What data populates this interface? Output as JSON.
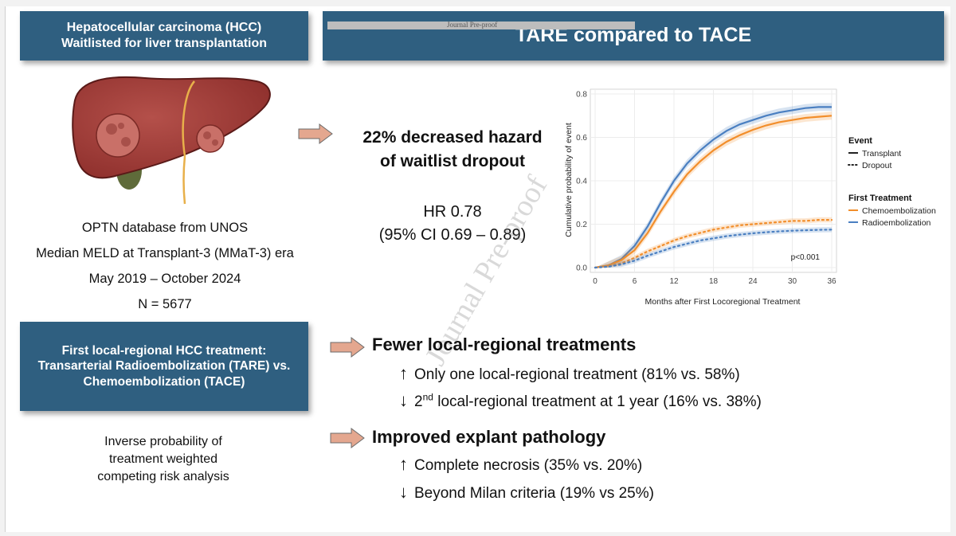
{
  "header_left": {
    "line1": "Hepatocellular carcinoma (HCC)",
    "line2": "Waitlisted for liver transplantation"
  },
  "header_right": {
    "title": "TARE compared to TACE",
    "overlay": "Journal Pre-proof"
  },
  "study": {
    "database": "OPTN database from UNOS",
    "era": "Median MELD at Transplant-3 (MMaT-3) era",
    "dates": "May 2019 – October 2024",
    "n": "N = 5677"
  },
  "result": {
    "hazard_line1": "22% decreased hazard",
    "hazard_line2": "of waitlist dropout",
    "hr": "HR 0.78",
    "ci": "(95% CI 0.69 – 0.89)"
  },
  "treatment_box": {
    "line1": "First local-regional HCC treatment:",
    "line2": "Transarterial Radioembolization (TARE) vs.",
    "line3": "Chemoembolization (TACE)"
  },
  "method": {
    "line1": "Inverse probability of",
    "line2": "treatment weighted",
    "line3": "competing risk analysis"
  },
  "findings": {
    "fewer": {
      "title": "Fewer local-regional treatments",
      "item1": "Only one local-regional treatment (81% vs. 58%)",
      "item2_sup": "nd",
      "item2_num": "2",
      "item2_rest": " local-regional treatment at 1 year (16% vs. 38%)"
    },
    "pathology": {
      "title": "Improved explant pathology",
      "item1": "Complete necrosis (35% vs. 20%)",
      "item2": "Beyond Milan criteria (19% vs 25%)"
    }
  },
  "watermark": "Journal Pre-proof",
  "colors": {
    "box": "#2f5f80",
    "arrow": "#e4a78f",
    "tace": "#f28e2b",
    "tare": "#4a7fc1"
  },
  "chart_data": {
    "type": "line",
    "xlabel": "Months after First Locoregional Treatment",
    "ylabel": "Cumulative probability of event",
    "x_ticks": [
      0,
      6,
      12,
      18,
      24,
      30,
      36
    ],
    "y_ticks": [
      0.0,
      0.2,
      0.4,
      0.6,
      0.8
    ],
    "y_tick_labels": [
      "0.0",
      "0.2",
      "0.4",
      "0.6",
      "0.8"
    ],
    "xlim": [
      0,
      36
    ],
    "ylim": [
      0,
      0.8
    ],
    "annotation": "p<0.001",
    "legend": {
      "event_title": "Event",
      "event_items": [
        "Transplant",
        "Dropout"
      ],
      "treatment_title": "First Treatment",
      "treatment_items": [
        "Chemoembolization",
        "Radioembolization"
      ]
    },
    "x": [
      0,
      2,
      4,
      6,
      8,
      10,
      12,
      14,
      16,
      18,
      20,
      22,
      24,
      26,
      28,
      30,
      32,
      34,
      36
    ],
    "series": [
      {
        "name": "Transplant - Radioembolization",
        "color": "#4a7fc1",
        "dash": false,
        "values": [
          0,
          0.01,
          0.04,
          0.1,
          0.19,
          0.3,
          0.4,
          0.48,
          0.54,
          0.59,
          0.63,
          0.66,
          0.68,
          0.7,
          0.715,
          0.725,
          0.735,
          0.74,
          0.74
        ]
      },
      {
        "name": "Transplant - Chemoembolization",
        "color": "#f28e2b",
        "dash": false,
        "values": [
          0,
          0.01,
          0.035,
          0.08,
          0.16,
          0.26,
          0.35,
          0.43,
          0.49,
          0.54,
          0.58,
          0.61,
          0.635,
          0.655,
          0.67,
          0.68,
          0.69,
          0.695,
          0.7
        ]
      },
      {
        "name": "Dropout - Chemoembolization",
        "color": "#f28e2b",
        "dash": true,
        "values": [
          0,
          0.005,
          0.02,
          0.045,
          0.075,
          0.1,
          0.125,
          0.145,
          0.16,
          0.175,
          0.185,
          0.195,
          0.2,
          0.205,
          0.21,
          0.215,
          0.215,
          0.22,
          0.22
        ]
      },
      {
        "name": "Dropout - Radioembolization",
        "color": "#4a7fc1",
        "dash": true,
        "values": [
          0,
          0.004,
          0.015,
          0.032,
          0.055,
          0.075,
          0.095,
          0.11,
          0.125,
          0.135,
          0.145,
          0.152,
          0.158,
          0.163,
          0.167,
          0.17,
          0.172,
          0.174,
          0.175
        ]
      }
    ]
  }
}
